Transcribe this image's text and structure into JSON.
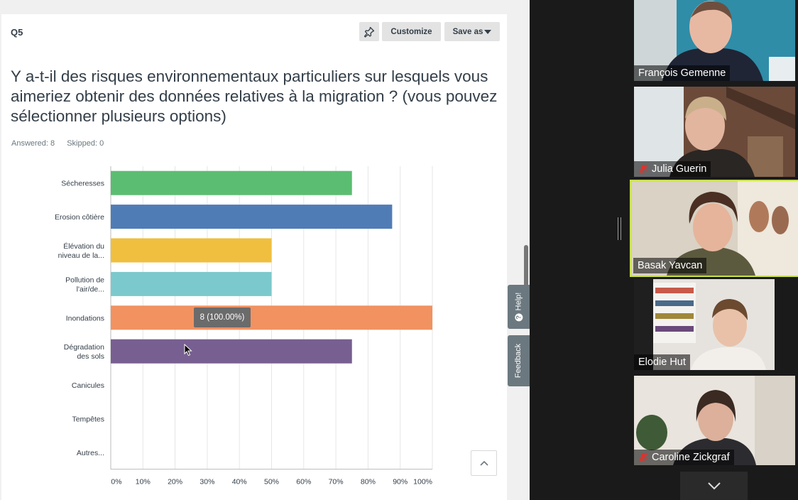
{
  "survey": {
    "question_number": "Q5",
    "toolbar": {
      "pin_icon": "pin-icon",
      "customize_label": "Customize",
      "save_as_label": "Save as"
    },
    "question_text": "Y a-t-il des risques environnementaux particuliers sur lesquels vous aimeriez obtenir des données relatives à la migration ? (vous pouvez sélectionner plusieurs options)",
    "answered_label": "Answered: 8",
    "skipped_label": "Skipped: 0",
    "tooltip": "8 (100.00%)",
    "help_label": "Help!",
    "feedback_label": "Feedback"
  },
  "chart_data": {
    "type": "bar",
    "orientation": "horizontal",
    "categories": [
      [
        "Sécheresses"
      ],
      [
        "Erosion côtière"
      ],
      [
        "Élévation du",
        "niveau de la..."
      ],
      [
        "Pollution de",
        "l'air/de..."
      ],
      [
        "Inondations"
      ],
      [
        "Dégradation",
        "des sols"
      ],
      [
        "Canicules"
      ],
      [
        "Tempêtes"
      ],
      [
        "Autres..."
      ]
    ],
    "values": [
      75,
      87.5,
      50,
      50,
      100,
      75,
      0,
      0,
      0
    ],
    "colors": [
      "#5bbd72",
      "#507cb6",
      "#f0bf40",
      "#7cc9cd",
      "#f19260",
      "#785f91",
      "#cccccc",
      "#cccccc",
      "#cccccc"
    ],
    "ticks": [
      "0%",
      "10%",
      "20%",
      "30%",
      "40%",
      "50%",
      "60%",
      "70%",
      "80%",
      "90%",
      "100%"
    ],
    "xlim": [
      0,
      100
    ],
    "grid": true
  },
  "participants": [
    {
      "name": "François Gemenne",
      "muted": false,
      "active": false
    },
    {
      "name": "Julia Guerin",
      "muted": true,
      "active": false
    },
    {
      "name": "Basak Yavcan",
      "muted": false,
      "active": true
    },
    {
      "name": "Elodie Hut",
      "muted": false,
      "active": false
    },
    {
      "name": "Caroline Zickgraf",
      "muted": true,
      "active": false
    }
  ]
}
